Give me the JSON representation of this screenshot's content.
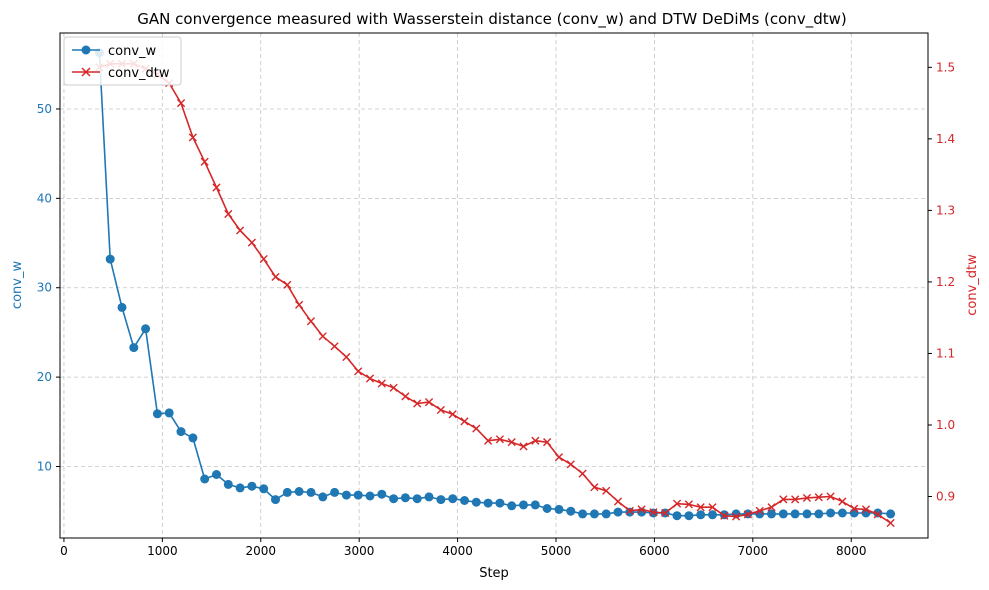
{
  "chart_data": {
    "type": "line",
    "title": "GAN convergence measured with Wasserstein distance (conv_w) and DTW DeDiMs (conv_dtw)",
    "xlabel": "Step",
    "ylabel_left": "conv_w",
    "ylabel_right": "conv_dtw",
    "xlim": [
      -40,
      8780
    ],
    "ylim_left": [
      2,
      58.5
    ],
    "ylim_right": [
      0.842,
      1.548
    ],
    "xticks": [
      0,
      1000,
      2000,
      3000,
      4000,
      5000,
      6000,
      7000,
      8000
    ],
    "yticks_left": [
      10,
      20,
      30,
      40,
      50
    ],
    "yticks_right": [
      0.9,
      1.0,
      1.1,
      1.2,
      1.3,
      1.4,
      1.5
    ],
    "yticklabels_right": [
      "0.9",
      "1.0",
      "1.1",
      "1.2",
      "1.3",
      "1.4",
      "1.5"
    ],
    "grid": true,
    "legend_position": "top-left",
    "colors": {
      "conv_w": "#1f77b4",
      "conv_dtw": "#d62728"
    },
    "x": [
      360,
      470,
      590,
      710,
      830,
      950,
      1070,
      1190,
      1310,
      1430,
      1550,
      1670,
      1790,
      1910,
      2030,
      2150,
      2270,
      2390,
      2510,
      2630,
      2750,
      2870,
      2990,
      3110,
      3230,
      3350,
      3470,
      3590,
      3710,
      3830,
      3950,
      4070,
      4190,
      4310,
      4430,
      4550,
      4670,
      4790,
      4910,
      5030,
      5150,
      5270,
      5390,
      5510,
      5630,
      5750,
      5870,
      5990,
      6110,
      6230,
      6350,
      6470,
      6590,
      6710,
      6830,
      6950,
      7070,
      7190,
      7310,
      7430,
      7550,
      7670,
      7790,
      7910,
      8030,
      8150,
      8270,
      8400
    ],
    "series": [
      {
        "name": "conv_w",
        "axis": "left",
        "marker": "circle",
        "values": [
          56.3,
          33.2,
          27.8,
          23.3,
          25.4,
          15.9,
          16.0,
          13.9,
          13.2,
          8.6,
          9.1,
          8.0,
          7.6,
          7.8,
          7.5,
          6.3,
          7.1,
          7.2,
          7.1,
          6.6,
          7.1,
          6.8,
          6.8,
          6.7,
          6.9,
          6.4,
          6.5,
          6.4,
          6.6,
          6.3,
          6.4,
          6.2,
          6.0,
          5.9,
          5.9,
          5.6,
          5.7,
          5.7,
          5.3,
          5.2,
          5.0,
          4.7,
          4.7,
          4.7,
          4.9,
          4.9,
          4.9,
          4.8,
          4.8,
          4.5,
          4.5,
          4.6,
          4.6,
          4.6,
          4.7,
          4.7,
          4.7,
          4.7,
          4.7,
          4.7,
          4.7,
          4.7,
          4.8,
          4.8,
          4.8,
          4.8,
          4.8,
          4.7
        ]
      },
      {
        "name": "conv_dtw",
        "axis": "right",
        "marker": "x",
        "values": [
          1.5,
          1.505,
          1.505,
          1.505,
          1.498,
          1.49,
          1.478,
          1.45,
          1.402,
          1.368,
          1.332,
          1.295,
          1.272,
          1.255,
          1.232,
          1.207,
          1.196,
          1.168,
          1.145,
          1.124,
          1.11,
          1.095,
          1.075,
          1.065,
          1.058,
          1.052,
          1.04,
          1.03,
          1.032,
          1.021,
          1.015,
          1.005,
          0.995,
          0.978,
          0.98,
          0.976,
          0.97,
          0.978,
          0.976,
          0.955,
          0.945,
          0.932,
          0.913,
          0.908,
          0.893,
          0.88,
          0.882,
          0.878,
          0.877,
          0.89,
          0.889,
          0.885,
          0.885,
          0.873,
          0.872,
          0.875,
          0.88,
          0.885,
          0.896,
          0.896,
          0.898,
          0.899,
          0.9,
          0.893,
          0.883,
          0.882,
          0.875,
          0.863
        ]
      }
    ]
  }
}
